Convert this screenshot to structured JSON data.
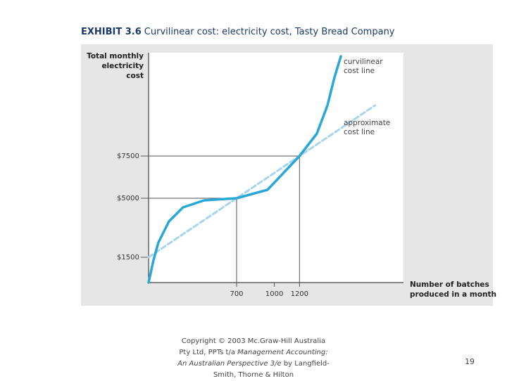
{
  "chart_data": {
    "type": "line",
    "exhibit": "EXHIBIT 3.6",
    "title": "Curvilinear cost: electricity cost, Tasty Bread Company",
    "y_label": [
      "Total monthly",
      "electricity cost"
    ],
    "x_label": [
      "Number of batches",
      "produced in a month"
    ],
    "xlim": [
      0,
      2027
    ],
    "ylim": [
      0,
      13625
    ],
    "xticks": [
      700,
      1000,
      1200
    ],
    "yticks": [
      {
        "value": 1500,
        "label": "$1500"
      },
      {
        "value": 5000,
        "label": "$5000"
      },
      {
        "value": 7500,
        "label": "$7500"
      }
    ],
    "series": [
      {
        "name": "curvilinear cost line",
        "color": "#29a8d8",
        "dashed": false,
        "x": [
          0,
          39,
          78,
          162,
          274,
          442,
          700,
          946,
          1200,
          1338,
          1422,
          1478,
          1529
        ],
        "values": [
          0,
          1333,
          2375,
          3625,
          4458,
          4875,
          5000,
          5500,
          7500,
          8833,
          10500,
          12167,
          13417
        ]
      },
      {
        "name": "approximate cost line",
        "color": "#a8d4ec",
        "dashed": true,
        "x": [
          0,
          1800
        ],
        "values": [
          1500,
          10500
        ]
      }
    ]
  },
  "footer": [
    "Copyright © 2003 Mc.Graw-Hill Australia Pty Ltd, PPTs t/a",
    "Management Accounting: An Australian Perspective 3/e",
    "by Langfield-Smith, Thorne & Hilton"
  ],
  "page_number": "19"
}
